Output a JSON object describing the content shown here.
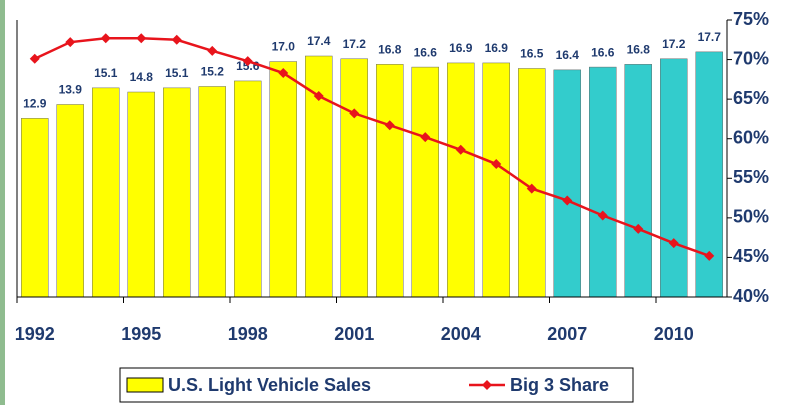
{
  "chart_data": {
    "type": "bar_line",
    "categories": [
      "1992",
      null,
      null,
      "1995",
      null,
      null,
      "1998",
      null,
      null,
      "2001",
      null,
      null,
      "2004",
      null,
      null,
      "2007",
      null,
      null,
      "2010",
      null
    ],
    "series": [
      {
        "name": "U.S. Light Vehicle Sales",
        "type": "bar",
        "colors": [
          "#ffff00",
          "#ffff00",
          "#ffff00",
          "#ffff00",
          "#ffff00",
          "#ffff00",
          "#ffff00",
          "#ffff00",
          "#ffff00",
          "#ffff00",
          "#ffff00",
          "#ffff00",
          "#ffff00",
          "#ffff00",
          "#ffff00",
          "#33cccc",
          "#33cccc",
          "#33cccc",
          "#33cccc",
          "#33cccc"
        ],
        "color": "#ffff00",
        "values": [
          12.9,
          13.9,
          15.1,
          14.8,
          15.1,
          15.2,
          15.6,
          17.0,
          17.4,
          17.2,
          16.8,
          16.6,
          16.9,
          16.9,
          16.5,
          16.4,
          16.6,
          16.8,
          17.2,
          17.7
        ],
        "value_labels": [
          "12.9",
          "13.9",
          "15.1",
          "14.8",
          "15.1",
          "15.2",
          "15.6",
          "17.0",
          "17.4",
          "17.2",
          "16.8",
          "16.6",
          "16.9",
          "16.9",
          "16.5",
          "16.4",
          "16.6",
          "16.8",
          "17.2",
          "17.7"
        ]
      },
      {
        "name": "Big 3 Share",
        "type": "line",
        "axis": "y2",
        "color": "#e8141c",
        "values": [
          70.1,
          72.2,
          72.7,
          72.7,
          72.5,
          71.1,
          69.8,
          68.3,
          65.4,
          63.2,
          61.7,
          60.2,
          58.6,
          56.8,
          53.7,
          52.2,
          50.3,
          48.6,
          46.8,
          45.2
        ]
      }
    ],
    "ylim": [
      0,
      20
    ],
    "y2lim": [
      40,
      75
    ],
    "y2ticks": [
      {
        "value": 40,
        "label": "40%"
      },
      {
        "value": 45,
        "label": "45%"
      },
      {
        "value": 50,
        "label": "50%"
      },
      {
        "value": 55,
        "label": "55%"
      },
      {
        "value": 60,
        "label": "60%"
      },
      {
        "value": 65,
        "label": "65%"
      },
      {
        "value": 70,
        "label": "70%"
      },
      {
        "value": 75,
        "label": "75%"
      }
    ],
    "legend": "bottom"
  }
}
